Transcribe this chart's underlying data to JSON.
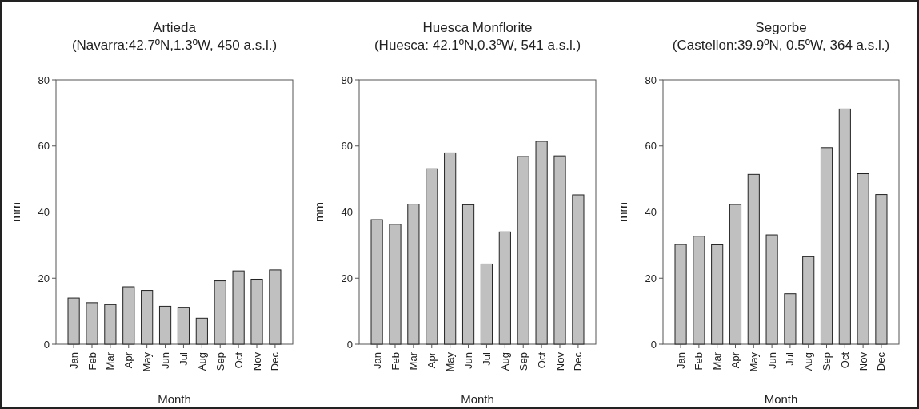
{
  "chart_data": [
    {
      "type": "bar",
      "title": "Artieda",
      "subtitle": "(Navarra:42.7ºN,1.3ºW, 450 a.s.l.)",
      "xlabel": "Month",
      "ylabel": "mm",
      "categories": [
        "Jan",
        "Feb",
        "Mar",
        "Apr",
        "May",
        "Jun",
        "Jul",
        "Aug",
        "Sep",
        "Oct",
        "Nov",
        "Dec"
      ],
      "series": [
        {
          "color": "#c0c0c0",
          "values": [
            14,
            12.6,
            12,
            17.4,
            16.3,
            11.5,
            11.2,
            7.9,
            19.2,
            22.2,
            19.7,
            22.5
          ]
        }
      ],
      "ylim": [
        0,
        80
      ],
      "yticks": [
        0,
        20,
        40,
        60,
        80
      ],
      "grid": false
    },
    {
      "type": "bar",
      "title": "Huesca Monflorite",
      "subtitle": "(Huesca: 42.1ºN,0.3ºW, 541 a.s.l.)",
      "xlabel": "Month",
      "ylabel": "mm",
      "categories": [
        "Jan",
        "Feb",
        "Mar",
        "Apr",
        "May",
        "Jun",
        "Jul",
        "Aug",
        "Sep",
        "Oct",
        "Nov",
        "Dec"
      ],
      "series": [
        {
          "color": "#c0c0c0",
          "values": [
            37.7,
            36.3,
            42.4,
            53.1,
            57.9,
            42.2,
            24.3,
            34,
            56.8,
            61.4,
            57,
            45.2
          ]
        }
      ],
      "ylim": [
        0,
        80
      ],
      "yticks": [
        0,
        20,
        40,
        60,
        80
      ],
      "grid": false
    },
    {
      "type": "bar",
      "title": "Segorbe",
      "subtitle": "(Castellon:39.9ºN, 0.5ºW, 364 a.s.l.)",
      "xlabel": "Month",
      "ylabel": "mm",
      "categories": [
        "Jan",
        "Feb",
        "Mar",
        "Apr",
        "May",
        "Jun",
        "Jul",
        "Aug",
        "Sep",
        "Oct",
        "Nov",
        "Dec"
      ],
      "series": [
        {
          "color": "#c0c0c0",
          "values": [
            30.2,
            32.7,
            30.1,
            42.3,
            51.4,
            33.1,
            15.3,
            26.5,
            59.5,
            71.2,
            51.6,
            45.3
          ]
        }
      ],
      "ylim": [
        0,
        80
      ],
      "yticks": [
        0,
        20,
        40,
        60,
        80
      ],
      "grid": false
    }
  ]
}
